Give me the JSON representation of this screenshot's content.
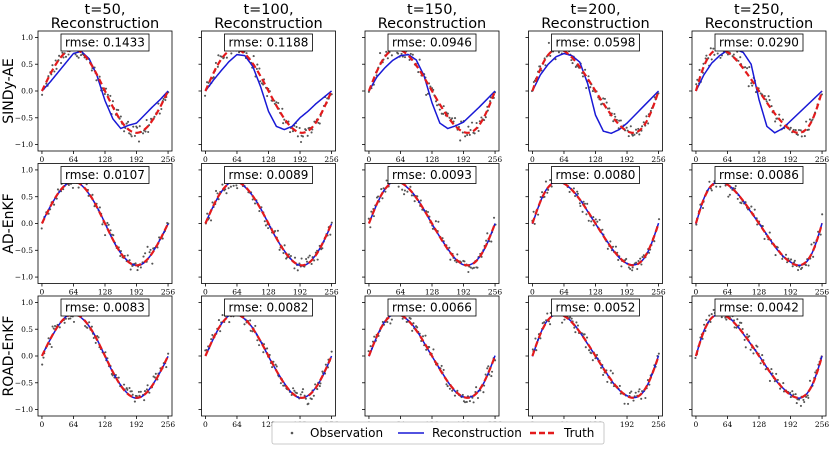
{
  "chart_data": {
    "type": "line",
    "column_titles": [
      {
        "line1": "t=50,",
        "line2": "Reconstruction"
      },
      {
        "line1": "t=100,",
        "line2": "Reconstruction"
      },
      {
        "line1": "t=150,",
        "line2": "Reconstruction"
      },
      {
        "line1": "t=200,",
        "line2": "Reconstruction"
      },
      {
        "line1": "t=250,",
        "line2": "Reconstruction"
      }
    ],
    "row_labels": [
      "SINDy-AE",
      "AD-EnKF",
      "ROAD-EnKF"
    ],
    "xticks": [
      0,
      64,
      128,
      192,
      256
    ],
    "xtick_labels": [
      "0",
      "64",
      "128",
      "192",
      "256"
    ],
    "yticks": [
      1.0,
      0.5,
      0.0,
      -0.5,
      -1.0
    ],
    "ytick_labels": [
      "1.0",
      "0.5",
      "0.0",
      "−0.5",
      "−1.0"
    ],
    "xlim": [
      -8,
      264
    ],
    "ylim": [
      -1.12,
      1.12
    ],
    "rmse_labels": [
      [
        "rmse: 0.1433",
        "rmse: 0.1188",
        "rmse: 0.0946",
        "rmse: 0.0598",
        "rmse: 0.0290"
      ],
      [
        "rmse: 0.0107",
        "rmse: 0.0089",
        "rmse: 0.0093",
        "rmse: 0.0080",
        "rmse: 0.0086"
      ],
      [
        "rmse: 0.0083",
        "rmse: 0.0082",
        "rmse: 0.0066",
        "rmse: 0.0052",
        "rmse: 0.0042"
      ]
    ],
    "truth_skew": [
      0.0,
      0.1,
      0.2,
      0.3,
      0.4
    ],
    "sindy_reconstruction": [
      {
        "x": [
          0,
          16,
          32,
          48,
          64,
          80,
          96,
          112,
          128,
          144,
          160,
          176,
          192,
          208,
          224,
          240,
          256
        ],
        "y": [
          0.0,
          0.16,
          0.34,
          0.52,
          0.7,
          0.74,
          0.6,
          0.28,
          -0.18,
          -0.52,
          -0.7,
          -0.64,
          -0.6,
          -0.45,
          -0.3,
          -0.16,
          0.0
        ]
      },
      {
        "x": [
          0,
          16,
          32,
          48,
          64,
          80,
          96,
          112,
          128,
          144,
          160,
          176,
          192,
          208,
          224,
          240,
          256
        ],
        "y": [
          0.0,
          0.2,
          0.38,
          0.55,
          0.68,
          0.66,
          0.46,
          0.08,
          -0.38,
          -0.66,
          -0.72,
          -0.66,
          -0.5,
          -0.38,
          -0.24,
          -0.12,
          0.0
        ]
      },
      {
        "x": [
          0,
          16,
          32,
          48,
          64,
          80,
          96,
          112,
          128,
          144,
          160,
          176,
          192,
          208,
          224,
          240,
          256
        ],
        "y": [
          0.0,
          0.26,
          0.43,
          0.57,
          0.66,
          0.68,
          0.58,
          0.28,
          -0.22,
          -0.6,
          -0.7,
          -0.65,
          -0.58,
          -0.44,
          -0.3,
          -0.15,
          0.0
        ]
      },
      {
        "x": [
          0,
          16,
          32,
          48,
          64,
          80,
          96,
          112,
          128,
          144,
          160,
          176,
          192,
          208,
          224,
          240,
          256
        ],
        "y": [
          0.0,
          0.3,
          0.5,
          0.64,
          0.7,
          0.66,
          0.54,
          0.14,
          -0.45,
          -0.75,
          -0.79,
          -0.72,
          -0.6,
          -0.45,
          -0.3,
          -0.15,
          0.0
        ]
      },
      {
        "x": [
          0,
          16,
          32,
          48,
          64,
          80,
          96,
          112,
          128,
          144,
          160,
          176,
          192,
          208,
          224,
          240,
          256
        ],
        "y": [
          0.0,
          0.3,
          0.52,
          0.66,
          0.76,
          0.78,
          0.72,
          0.5,
          -0.16,
          -0.66,
          -0.78,
          -0.7,
          -0.56,
          -0.42,
          -0.28,
          -0.14,
          0.0
        ]
      }
    ],
    "legend": {
      "placement": "bottom-center",
      "entries": [
        "Observation",
        "Reconstruction",
        "Truth"
      ]
    },
    "colors": {
      "observation": "#555555",
      "reconstruction": "#1919d6",
      "truth": "#e31a1c"
    },
    "observation_noise_std": 0.075,
    "observations_per_panel": 95
  }
}
